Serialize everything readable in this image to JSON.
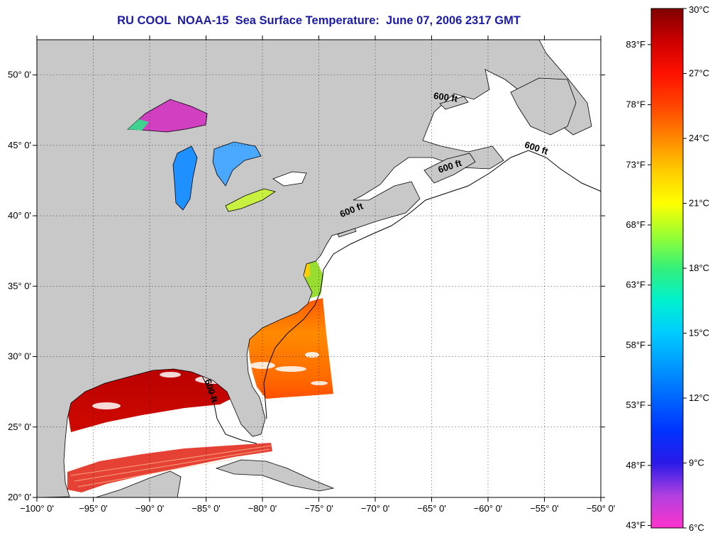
{
  "title": "RU COOL  NOAA-15  Sea Surface Temperature:  June 07, 2006 2317 GMT",
  "map": {
    "lon_range": [
      -100,
      -50
    ],
    "lat_range": [
      20,
      52.5
    ],
    "grid": true,
    "lat_ticks": [
      {
        "value": 20,
        "label": "20° 0'"
      },
      {
        "value": 25,
        "label": "25° 0'"
      },
      {
        "value": 30,
        "label": "30° 0'"
      },
      {
        "value": 35,
        "label": "35° 0'"
      },
      {
        "value": 40,
        "label": "40° 0'"
      },
      {
        "value": 45,
        "label": "45° 0'"
      },
      {
        "value": 50,
        "label": "50° 0'"
      }
    ],
    "lon_ticks": [
      {
        "value": -100,
        "label": "−100° 0'"
      },
      {
        "value": -95,
        "label": "−95° 0'"
      },
      {
        "value": -90,
        "label": "−90° 0'"
      },
      {
        "value": -85,
        "label": "−85° 0'"
      },
      {
        "value": -80,
        "label": "−80° 0'"
      },
      {
        "value": -75,
        "label": "−75° 0'"
      },
      {
        "value": -70,
        "label": "−70° 0'"
      },
      {
        "value": -65,
        "label": "−65° 0'"
      },
      {
        "value": -60,
        "label": "−60° 0'"
      },
      {
        "value": -55,
        "label": "−55° 0'"
      },
      {
        "value": -50,
        "label": "−50° 0'"
      }
    ],
    "contour_labels": [
      {
        "text": "600 ft",
        "lon": -63.8,
        "lat": 48.2,
        "angle": 8
      },
      {
        "text": "600 ft",
        "lon": -55.8,
        "lat": 44.6,
        "angle": 18
      },
      {
        "text": "600 ft",
        "lon": -63.3,
        "lat": 43.3,
        "angle": -18
      },
      {
        "text": "600 ft",
        "lon": -72.0,
        "lat": 40.2,
        "angle": -22
      },
      {
        "text": "600 ft",
        "lon": -84.8,
        "lat": 27.5,
        "angle": 72
      }
    ],
    "colors": {
      "land": "#c8c8c8",
      "no_data": "#ffffff",
      "frame": "#000000"
    }
  },
  "colorbar": {
    "c_labels": [
      {
        "value": 30,
        "label": "30°C"
      },
      {
        "value": 27,
        "label": "27°C"
      },
      {
        "value": 24,
        "label": "24°C"
      },
      {
        "value": 21,
        "label": "21°C"
      },
      {
        "value": 18,
        "label": "18°C"
      },
      {
        "value": 15,
        "label": "15°C"
      },
      {
        "value": 12,
        "label": "12°C"
      },
      {
        "value": 9,
        "label": "9°C"
      },
      {
        "value": 6,
        "label": "6°C"
      }
    ],
    "f_labels": [
      {
        "value": 83,
        "label": "83°F"
      },
      {
        "value": 78,
        "label": "78°F"
      },
      {
        "value": 73,
        "label": "73°F"
      },
      {
        "value": 68,
        "label": "68°F"
      },
      {
        "value": 63,
        "label": "63°F"
      },
      {
        "value": 58,
        "label": "58°F"
      },
      {
        "value": 53,
        "label": "53°F"
      },
      {
        "value": 48,
        "label": "48°F"
      },
      {
        "value": 43,
        "label": "43°F"
      }
    ],
    "range_c": [
      6,
      30
    ],
    "gradient": [
      {
        "value": 6,
        "color": "#ff33cc"
      },
      {
        "value": 7.5,
        "color": "#b040e0"
      },
      {
        "value": 9,
        "color": "#2a1ae8"
      },
      {
        "value": 10.5,
        "color": "#0033ff"
      },
      {
        "value": 13.5,
        "color": "#0099ff"
      },
      {
        "value": 15,
        "color": "#00ccff"
      },
      {
        "value": 16.5,
        "color": "#00f0d0"
      },
      {
        "value": 18,
        "color": "#33f07a"
      },
      {
        "value": 19.5,
        "color": "#99ff33"
      },
      {
        "value": 21,
        "color": "#ffff00"
      },
      {
        "value": 22.5,
        "color": "#ffcc00"
      },
      {
        "value": 24,
        "color": "#ff8800"
      },
      {
        "value": 25.5,
        "color": "#ff4400"
      },
      {
        "value": 27,
        "color": "#ff1100"
      },
      {
        "value": 28.5,
        "color": "#cc0000"
      },
      {
        "value": 30,
        "color": "#800000"
      }
    ]
  }
}
